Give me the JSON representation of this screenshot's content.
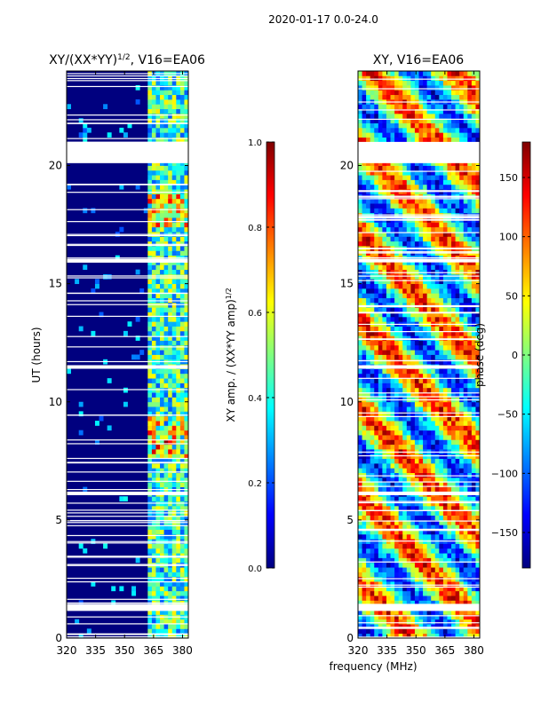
{
  "suptitle": "2020-01-17 0.0-24.0",
  "shared_xlabel": "frequency (MHz)",
  "colors": {
    "background": "#00007f",
    "gap": "#ffffff",
    "axis": "#000000"
  },
  "chart_data": [
    {
      "type": "heatmap",
      "name": "amplitude-panel",
      "title": "XY/(XX*YY)",
      "title_sup": "1/2",
      "title_suffix": ", V16=EA06",
      "ylabel": "UT (hours)",
      "xlim": [
        320,
        383
      ],
      "ylim": [
        0,
        24
      ],
      "xticks": [
        320,
        335,
        350,
        365,
        380
      ],
      "yticks": [
        0,
        5,
        10,
        15,
        20
      ],
      "colorbar": {
        "label": "XY amp. / (XX*YY amp)",
        "label_sup": "1/2",
        "range": [
          0.0,
          1.0
        ],
        "ticks": [
          "0.0",
          "0.2",
          "0.4",
          "0.6",
          "0.8",
          "1.0"
        ],
        "tick_values": [
          0.0,
          0.2,
          0.4,
          0.6,
          0.8,
          1.0
        ]
      },
      "active_band_mhz": [
        361,
        381
      ],
      "gaps_hours": [
        [
          20.1,
          21.0
        ],
        [
          1.15,
          1.45
        ],
        [
          11.4,
          11.55
        ],
        [
          15.9,
          16.05
        ],
        [
          6.05,
          6.2
        ]
      ]
    },
    {
      "type": "heatmap",
      "name": "phase-panel",
      "title": "XY, V16=EA06",
      "ylabel": "",
      "xlim": [
        320,
        383
      ],
      "ylim": [
        0,
        24
      ],
      "xticks": [
        320,
        335,
        350,
        365,
        380
      ],
      "yticks": [
        0,
        5,
        10,
        15,
        20
      ],
      "colorbar": {
        "label": "phase (deg)",
        "range": [
          -180,
          180
        ],
        "ticks": [
          "−150",
          "−100",
          "−50",
          "0",
          "50",
          "100",
          "150"
        ],
        "tick_values": [
          -150,
          -100,
          -50,
          0,
          50,
          100,
          150
        ]
      },
      "gaps_hours": [
        [
          20.1,
          21.0
        ],
        [
          1.15,
          1.45
        ],
        [
          11.4,
          11.55
        ],
        [
          15.9,
          16.05
        ],
        [
          6.05,
          6.2
        ]
      ]
    }
  ]
}
